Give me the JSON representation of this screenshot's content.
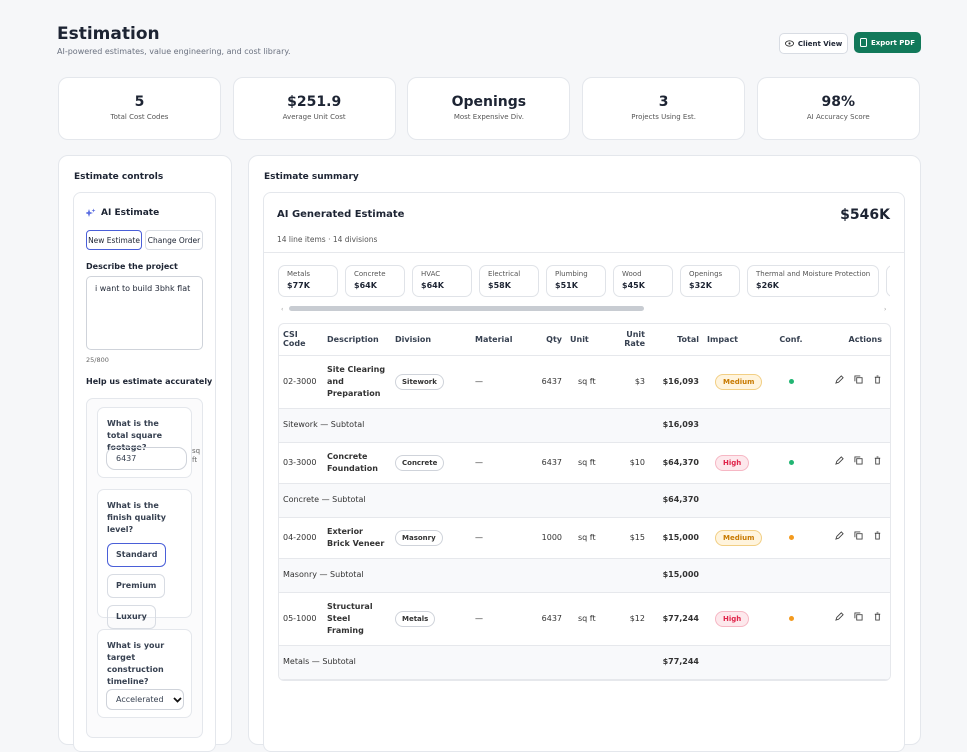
{
  "header": {
    "title": "Estimation",
    "subtitle": "AI-powered estimates, value engineering, and cost library.",
    "buttons": [
      "Client View",
      "Export PDF"
    ]
  },
  "stats": [
    {
      "value": "5",
      "label": "Total Cost Codes"
    },
    {
      "value": "$251.9",
      "label": "Average Unit Cost"
    },
    {
      "value": "Openings",
      "label": "Most Expensive Div."
    },
    {
      "value": "3",
      "label": "Projects Using Est."
    },
    {
      "value": "98%",
      "label": "AI Accuracy Score"
    }
  ],
  "controls": {
    "title": "Estimate controls",
    "ai_title": "AI Estimate",
    "tabs": [
      "New Estimate",
      "Change Order"
    ],
    "describe_label": "Describe the project",
    "description": "i want to build 3bhk flat",
    "char_count": "25/800",
    "help_title": "Help us estimate accurately",
    "q1": {
      "question": "What is the total square footage?",
      "value": "6437",
      "unit": "sq ft"
    },
    "q2": {
      "question": "What is the finish quality level?",
      "options": [
        "Standard",
        "Premium",
        "Luxury"
      ]
    },
    "q3": {
      "question": "What is your target construction timeline?",
      "value": "Accelerated"
    }
  },
  "summary": {
    "title": "Estimate summary",
    "card_title": "AI Generated Estimate",
    "total": "$546K",
    "meta": "14 line items · 14 divisions",
    "divisions": [
      {
        "name": "Metals",
        "amount": "$77K"
      },
      {
        "name": "Concrete",
        "amount": "$64K"
      },
      {
        "name": "HVAC",
        "amount": "$64K"
      },
      {
        "name": "Electrical",
        "amount": "$58K"
      },
      {
        "name": "Plumbing",
        "amount": "$51K"
      },
      {
        "name": "Wood",
        "amount": "$45K"
      },
      {
        "name": "Openings",
        "amount": "$32K"
      },
      {
        "name": "Thermal and Moisture Protection",
        "amount": "$26K"
      }
    ],
    "table": {
      "headers": [
        "CSI Code",
        "Description",
        "Division",
        "Material",
        "Qty",
        "Unit",
        "Unit Rate",
        "Total",
        "Impact",
        "Conf.",
        "Actions"
      ],
      "rows": [
        {
          "code": "02-3000",
          "description": "Site Clearing and Preparation",
          "division": "Sitework",
          "material": "—",
          "qty": "6437",
          "unit": "sq ft",
          "rate": "$3",
          "total": "$16,093",
          "impact": "Medium",
          "conf_color": "#22b573"
        },
        {
          "subtotal": "Sitework — Subtotal",
          "total": "$16,093"
        },
        {
          "code": "03-3000",
          "description": "Concrete Foundation",
          "division": "Concrete",
          "material": "—",
          "qty": "6437",
          "unit": "sq ft",
          "rate": "$10",
          "total": "$64,370",
          "impact": "High",
          "conf_color": "#22b573"
        },
        {
          "subtotal": "Concrete — Subtotal",
          "total": "$64,370"
        },
        {
          "code": "04-2000",
          "description": "Exterior Brick Veneer",
          "division": "Masonry",
          "material": "—",
          "qty": "1000",
          "unit": "sq ft",
          "rate": "$15",
          "total": "$15,000",
          "impact": "Medium",
          "conf_color": "#f39a1e"
        },
        {
          "subtotal": "Masonry — Subtotal",
          "total": "$15,000"
        },
        {
          "code": "05-1000",
          "description": "Structural Steel Framing",
          "division": "Metals",
          "material": "—",
          "qty": "6437",
          "unit": "sq ft",
          "rate": "$12",
          "total": "$77,244",
          "impact": "High",
          "conf_color": "#f39a1e"
        },
        {
          "subtotal": "Metals — Subtotal",
          "total": "$77,244"
        }
      ]
    }
  }
}
